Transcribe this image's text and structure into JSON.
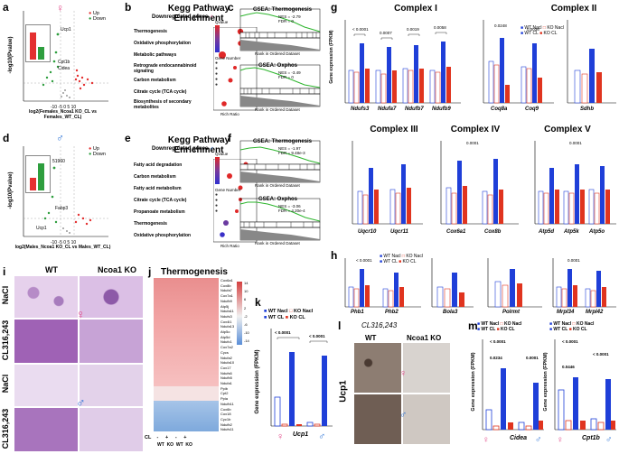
{
  "panels": {
    "a": {
      "label": "a",
      "ylabel": "-log10(Pvalue)",
      "xlabel": "log2(Females_Ncoa1 KO_CL vs Females_WT_CL)",
      "legend": [
        "Up",
        "Down"
      ],
      "genes": [
        "Ucp1",
        "Cpt1b",
        "Cidea"
      ],
      "inset_ylabel": "Number of genes",
      "ticks_y": [
        "60",
        "40",
        "20",
        "0"
      ],
      "ticks_x": [
        "-10",
        "-5",
        "0",
        "5",
        "10"
      ]
    },
    "b": {
      "label": "b",
      "title": "Kegg Pathway Enrichment",
      "subtitle": "Downregulated genes",
      "pathways": [
        "Thermogenesis",
        "Oxidative phosphorylation",
        "Metabolic pathways",
        "Retrograde endocannabinoid signaling",
        "Carbon metabolism",
        "Citrate cycle (TCA cycle)",
        "Biosynthesis of secondary metabolites"
      ],
      "xlabel": "Rich Ratio",
      "legend_title": "Qvalue",
      "legend_title2": "Gene Number"
    },
    "c": {
      "label": "c",
      "gsea1_title": "GSEA: Thermogenesis",
      "gsea1_stats": [
        "NES = -2.79",
        "FDR = 0"
      ],
      "gsea2_title": "GSEA: Oxphos",
      "gsea2_stats": [
        "NES = -3.49",
        "FDR = 0"
      ],
      "xlabel": "Rank in Ordered Dataset",
      "ylabel_top": "Enrichment score",
      "ylabel_bottom": "Ranked list metric"
    },
    "d": {
      "label": "d",
      "ylabel": "-log10(Pvalue)",
      "xlabel": "log2(Males_Ncoa1 KO_CL vs Males_WT_CL)",
      "legend": [
        "Up",
        "Down"
      ],
      "genes": [
        "Fabp3",
        "Ucp1"
      ],
      "count": "51960"
    },
    "e": {
      "label": "e",
      "title": "Kegg Pathway Enrichment",
      "subtitle": "Downregulated genes",
      "pathways": [
        "Fatty acid degradation",
        "Carbon metabolism",
        "Fatty acid metabolism",
        "Citrate cycle (TCA cycle)",
        "Propanoate metabolism",
        "Thermogenesis",
        "Oxidative phosphorylation"
      ],
      "xlabel": "Rich Ratio",
      "legend_title": "Qvalue",
      "legend_title2": "Gene Number"
    },
    "f": {
      "label": "f",
      "gsea1_title": "GSEA: Thermogenesis",
      "gsea1_stats": [
        "NES = -1.97",
        "FDR = 9.48e-3"
      ],
      "gsea2_title": "GSEA: Oxphos",
      "gsea2_stats": [
        "NES = -3.06",
        "FDR = 4.20e-4"
      ],
      "xlabel": "Rank in Ordered Dataset"
    },
    "g": {
      "label": "g",
      "complex_titles": [
        "Complex I",
        "Complex II",
        "Complex III",
        "Complex IV",
        "Complex V"
      ],
      "ylabel": "Gene expression (FPKM)",
      "complex1_genes": [
        "Ndufs3",
        "Ndufa7",
        "Ndufb7",
        "Ndufb9"
      ],
      "complex2_genes": [
        "Coq8a",
        "Coq9",
        "Sdhb"
      ],
      "complex3_genes": [
        "Uqcr10",
        "Uqcr11"
      ],
      "complex4_genes": [
        "Cox6a1",
        "Cox8b"
      ],
      "complex5_genes": [
        "Atp5d",
        "Atp5k",
        "Atp5o"
      ],
      "legend": [
        "WT Nacl",
        "KO Nacl",
        "WT CL",
        "KO CL"
      ],
      "pvals": [
        "< 0.0001",
        "0.0007",
        "0.0019",
        "0.0058",
        "0.0248",
        "0.0036",
        "0.0001",
        "0.0001"
      ]
    },
    "h": {
      "label": "h",
      "genes": [
        "Phb1",
        "Phb2",
        "Bola3",
        "Polrmt",
        "Mrpl34",
        "Mrpl42"
      ],
      "ylabel": "Gene expression (FPKM)",
      "legend": [
        "WT Nacl",
        "KO Nacl",
        "WT CL",
        "KO CL"
      ],
      "pvals": [
        "< 0.0001",
        "0.0001"
      ]
    },
    "i": {
      "label": "i",
      "col_labels": [
        "WT",
        "Ncoa1 KO"
      ],
      "row_labels": [
        "NaCl",
        "CL316,243",
        "NaCl",
        "CL316,243"
      ]
    },
    "j": {
      "label": "j",
      "title": "Thermogenesis",
      "genes": [
        "Cox6a1",
        "Cox8b",
        "Ndufa7",
        "Cox7a1",
        "Ndufb9",
        "Atp5j",
        "Ndufa11",
        "Ndufs3",
        "Cox4i1",
        "Ndufa13",
        "Atp5o",
        "Atp5d",
        "Ndufc1",
        "Cox7a2",
        "Cycs",
        "Ndufa2",
        "Ndufa10",
        "Cox17",
        "Ndufs6",
        "Ndufb5",
        "Ndufa1",
        "Ppib",
        "Cpt2",
        "Ppia",
        "Ndufb11",
        "Cox6b",
        "Cox18",
        "Cyc1b",
        "Ndufb2",
        "Ndufs11"
      ],
      "scale": [
        "-14",
        "-10",
        "-6",
        "-2",
        "2",
        "6",
        "10",
        "14"
      ],
      "bottom_rows": [
        "CL",
        "-",
        "+",
        "-",
        "+"
      ],
      "col_groups": [
        "WT",
        "KO",
        "WT",
        "KO"
      ]
    },
    "k": {
      "label": "k",
      "legend": [
        "WT Nacl",
        "KO Nacl",
        "WT CL",
        "KO CL"
      ],
      "ylabel": "Gene expression (FPKM)",
      "xlabel": "Ucp1",
      "pvals": [
        "< 0.0001",
        "< 0.0001"
      ],
      "yticks": [
        "0",
        "200",
        "400",
        "600"
      ]
    },
    "l": {
      "label": "l",
      "title": "CL316,243",
      "col_labels": [
        "WT",
        "Ncoa1 KO"
      ],
      "row_label": "Ucp1"
    },
    "m": {
      "label": "m",
      "legend": [
        "WT Nacl",
        "KO Nacl",
        "WT CL",
        "KO CL"
      ],
      "genes": [
        "Cidea",
        "Cpt1b"
      ],
      "ylabel": "Gene expression (FPKM)",
      "pvals_cidea": [
        "< 0.0001",
        "0.0234",
        "0.0001"
      ],
      "pvals_cpt1b": [
        "< 0.0001",
        "0.0446",
        "< 0.0001"
      ]
    }
  },
  "colors": {
    "wt_nacl": "#ffffff",
    "ko_nacl": "#ffffff",
    "wt_cl": "#1f3fd8",
    "ko_cl": "#e0341f",
    "female": "#e24a8a",
    "male": "#2b72d6",
    "up": "#e43030",
    "down": "#2e9e3e"
  }
}
